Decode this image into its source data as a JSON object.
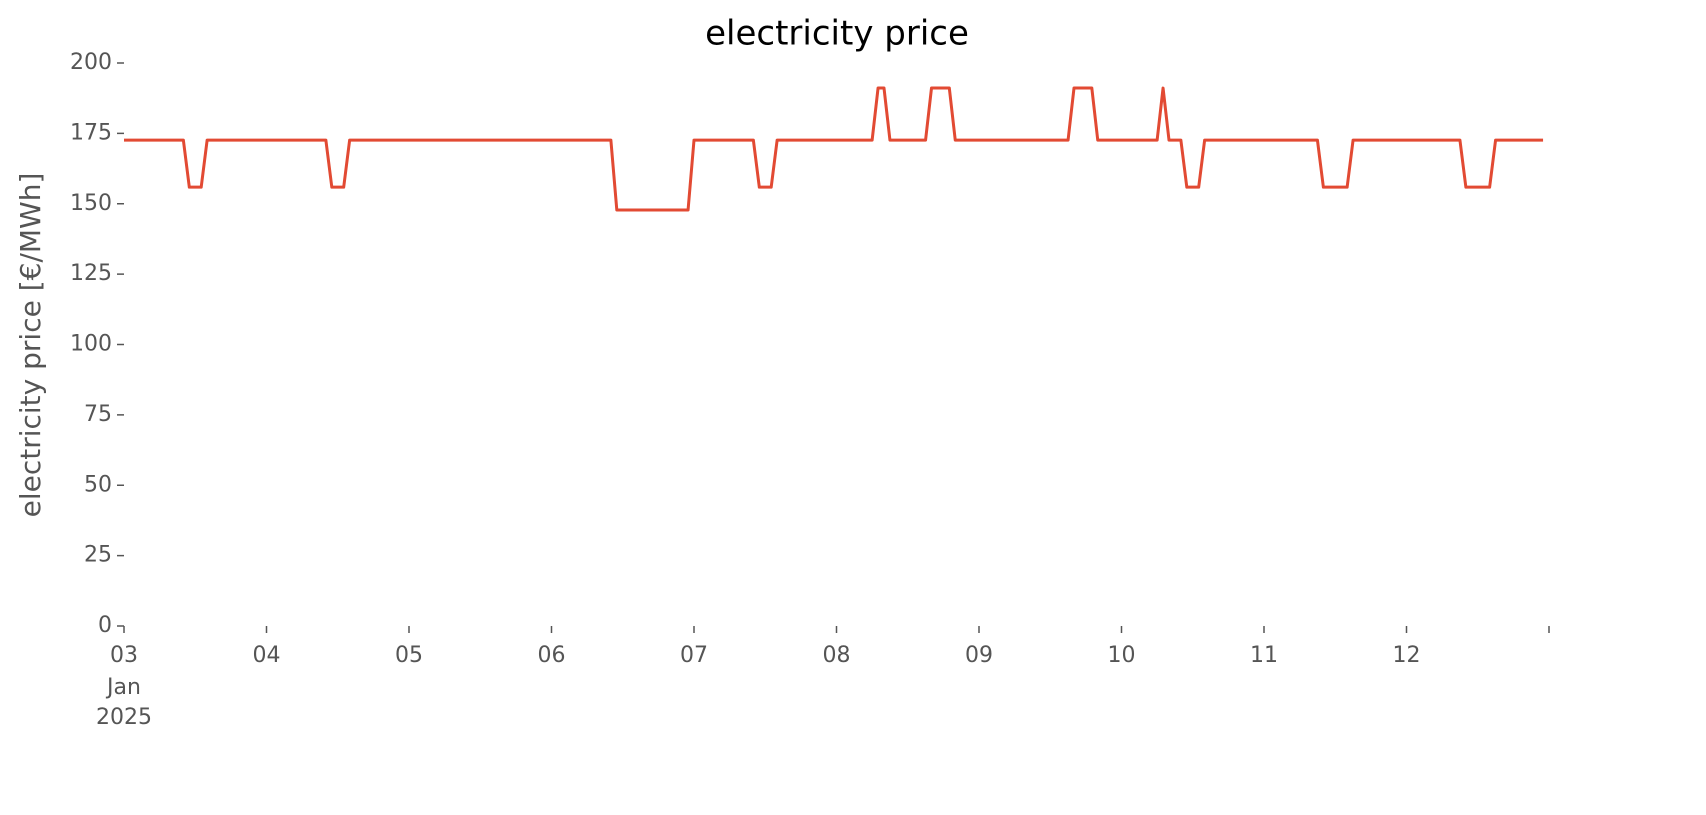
{
  "chart_data": {
    "type": "line",
    "title": "electricity price",
    "ylabel": "electricity price [€/MWh]",
    "x": [
      "2025-01-03T00:00",
      "2025-01-03T10:00",
      "2025-01-03T11:00",
      "2025-01-03T13:00",
      "2025-01-03T14:00",
      "2025-01-04T10:00",
      "2025-01-04T11:00",
      "2025-01-04T13:00",
      "2025-01-04T14:00",
      "2025-01-06T10:00",
      "2025-01-06T11:00",
      "2025-01-06T23:00",
      "2025-01-07T00:00",
      "2025-01-07T10:00",
      "2025-01-07T11:00",
      "2025-01-07T13:00",
      "2025-01-07T14:00",
      "2025-01-08T06:00",
      "2025-01-08T07:00",
      "2025-01-08T08:00",
      "2025-01-08T09:00",
      "2025-01-08T15:00",
      "2025-01-08T16:00",
      "2025-01-08T19:00",
      "2025-01-08T20:00",
      "2025-01-09T15:00",
      "2025-01-09T16:00",
      "2025-01-09T19:00",
      "2025-01-09T20:00",
      "2025-01-10T06:00",
      "2025-01-10T07:00",
      "2025-01-10T08:00",
      "2025-01-10T10:00",
      "2025-01-10T11:00",
      "2025-01-10T13:00",
      "2025-01-10T14:00",
      "2025-01-11T09:00",
      "2025-01-11T10:00",
      "2025-01-11T14:00",
      "2025-01-11T15:00",
      "2025-01-12T09:00",
      "2025-01-12T10:00",
      "2025-01-12T14:00",
      "2025-01-12T15:00",
      "2025-01-12T23:00"
    ],
    "series": [
      {
        "name": "electricity price",
        "color": "#e24a33",
        "values": [
          172.6,
          172.6,
          155.9,
          155.9,
          172.6,
          172.6,
          155.9,
          155.9,
          172.6,
          172.6,
          147.8,
          147.8,
          172.6,
          172.6,
          155.9,
          155.9,
          172.6,
          172.6,
          191.1,
          191.1,
          172.6,
          172.6,
          191.1,
          191.1,
          172.6,
          172.6,
          191.1,
          191.1,
          172.6,
          172.6,
          191.1,
          172.6,
          172.6,
          155.9,
          155.9,
          172.6,
          172.6,
          155.9,
          155.9,
          172.6,
          172.6,
          155.9,
          155.9,
          172.6,
          172.6
        ]
      }
    ],
    "xlim": [
      "2025-01-03T00:00",
      "2025-01-13T00:00"
    ],
    "xticks": [
      {
        "value": "2025-01-03T00:00",
        "label": "03"
      },
      {
        "value": "2025-01-04T00:00",
        "label": "04"
      },
      {
        "value": "2025-01-05T00:00",
        "label": "05"
      },
      {
        "value": "2025-01-06T00:00",
        "label": "06"
      },
      {
        "value": "2025-01-07T00:00",
        "label": "07"
      },
      {
        "value": "2025-01-08T00:00",
        "label": "08"
      },
      {
        "value": "2025-01-09T00:00",
        "label": "09"
      },
      {
        "value": "2025-01-10T00:00",
        "label": "10"
      },
      {
        "value": "2025-01-11T00:00",
        "label": "11"
      },
      {
        "value": "2025-01-12T00:00",
        "label": "12"
      },
      {
        "value": "2025-01-13T00:00",
        "label": null
      }
    ],
    "xtick_month": "Jan",
    "xtick_year": "2025",
    "ylim": [
      0,
      200
    ],
    "yticks": [
      0,
      25,
      50,
      75,
      100,
      125,
      150,
      175,
      200
    ],
    "grid": false
  }
}
